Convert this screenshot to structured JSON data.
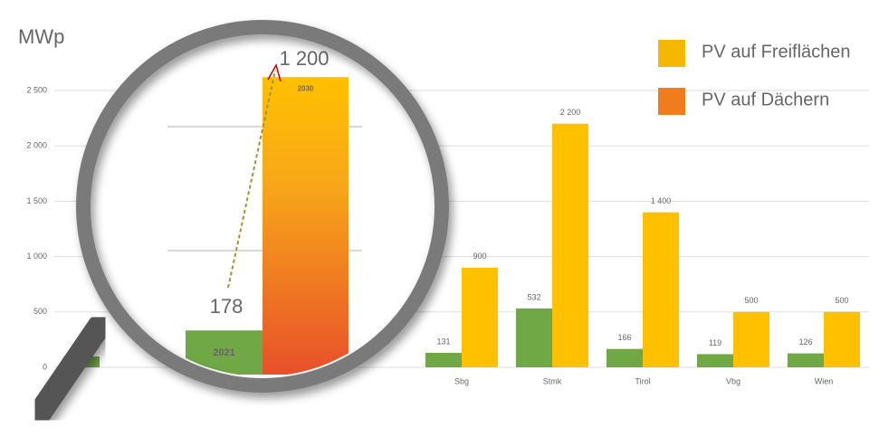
{
  "chart_data": {
    "type": "bar",
    "y_label": "MWp",
    "categories": [
      null,
      null,
      null,
      null,
      "Sbg",
      "Stmk",
      "Tirol",
      "Vbg",
      "Wien"
    ],
    "series": [
      {
        "name": "2021",
        "color": "#70a845",
        "values": [
          97,
          null,
          null,
          null,
          131,
          532,
          166,
          119,
          126
        ]
      },
      {
        "name": "2030",
        "color": "#ffc000",
        "values": [
          null,
          null,
          null,
          null,
          900,
          2200,
          1400,
          500,
          500
        ],
        "value_labels": [
          null,
          null,
          null,
          null,
          "900",
          "2 200",
          "1 400",
          "500",
          "500"
        ]
      }
    ],
    "legend": [
      {
        "name": "PV auf Freiflächen",
        "color": "#f5b800"
      },
      {
        "name": "PV auf Dächern",
        "color": "#f07c1e"
      }
    ],
    "ylim": [
      0,
      2500
    ],
    "yticks": [
      0,
      500,
      {
        "value": 1000,
        "label": "1 000"
      },
      {
        "value": 1500,
        "label": "1 500"
      },
      {
        "value": 2000,
        "label": "2 000"
      },
      {
        "value": 2500,
        "label": "2 500"
      }
    ],
    "grid": true,
    "magnifier": {
      "values": [
        178,
        1200
      ],
      "value_labels": [
        "178",
        "1 200"
      ],
      "bar_labels": [
        "2021",
        "2030"
      ]
    }
  }
}
